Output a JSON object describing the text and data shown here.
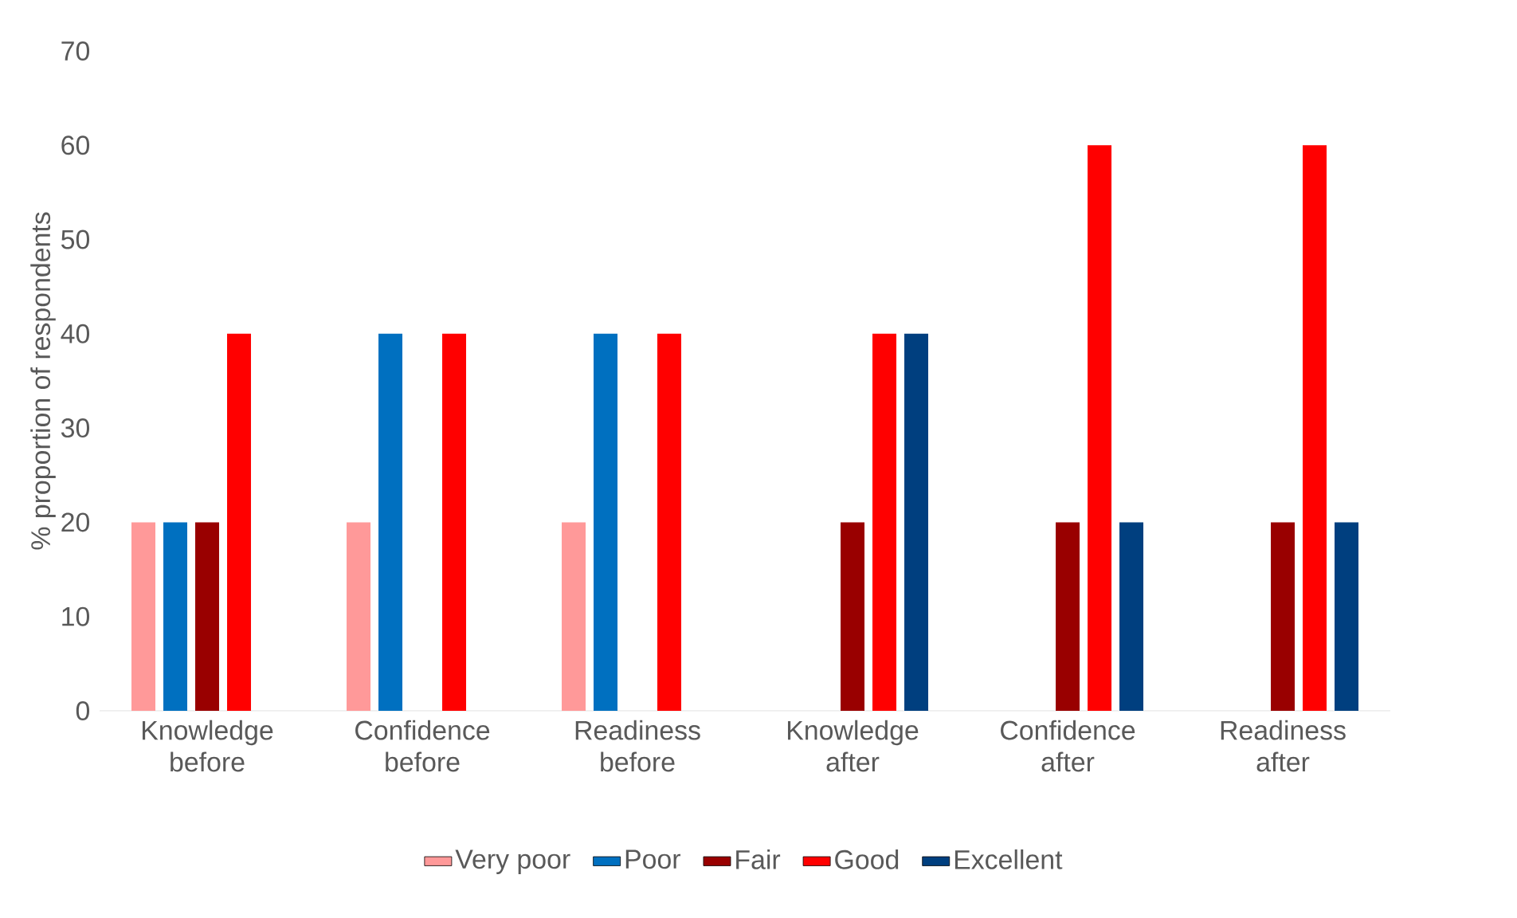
{
  "chart_data": {
    "type": "bar",
    "ylabel": "% proportion of respondents",
    "categories": [
      "Knowledge before",
      "Confidence before",
      "Readiness before",
      "Knowledge after",
      "Confidence after",
      "Readiness after"
    ],
    "series": [
      {
        "name": "Very poor",
        "color": "#ff9999",
        "values": [
          20,
          20,
          20,
          0,
          0,
          0
        ]
      },
      {
        "name": "Poor",
        "color": "#0070c0",
        "values": [
          20,
          40,
          40,
          0,
          0,
          0
        ]
      },
      {
        "name": "Fair",
        "color": "#990000",
        "values": [
          20,
          0,
          0,
          20,
          20,
          20
        ]
      },
      {
        "name": "Good",
        "color": "#ff0000",
        "values": [
          40,
          40,
          40,
          40,
          60,
          60
        ]
      },
      {
        "name": "Excellent",
        "color": "#003f7f",
        "values": [
          0,
          0,
          0,
          40,
          20,
          20
        ]
      }
    ],
    "ylim": [
      0,
      70
    ],
    "yticks": [
      0,
      10,
      20,
      30,
      40,
      50,
      60,
      70
    ],
    "grid": false,
    "legend": "bottom"
  }
}
